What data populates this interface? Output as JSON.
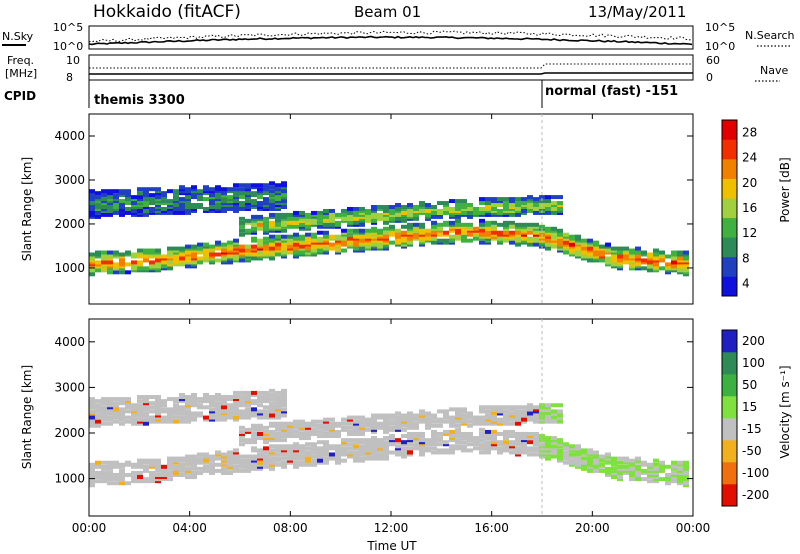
{
  "header": {
    "title": "Hokkaido (fitACF)",
    "beam": "Beam 01",
    "date": "13/May/2011"
  },
  "params": {
    "nsky_label": "N.Sky",
    "nsearch_label": "N.Search",
    "freq_label_line1": "Freq.",
    "freq_label_line2": "[MHz]",
    "nave_label": "Nave",
    "cpid_label": "CPID",
    "nsky_ticks": [
      "10^5",
      "10^0"
    ],
    "nsearch_ticks": [
      "10^5",
      "10^0"
    ],
    "freq_ticks": [
      "10",
      "8"
    ],
    "nave_ticks": [
      "60",
      "0"
    ],
    "cpid_segments": [
      {
        "name": "themis 3300",
        "start_hour": 0
      },
      {
        "name": "normal (fast) -151",
        "start_hour": 18
      }
    ]
  },
  "colors": {
    "power": [
      "#1010dd",
      "#2040c0",
      "#2e8b57",
      "#40b040",
      "#a0d040",
      "#f0c000",
      "#f08000",
      "#f03000",
      "#e00000"
    ],
    "velocity": [
      "#2020c0",
      "#2e8b57",
      "#3cb040",
      "#80e040",
      "#c0c0c0",
      "#f0b020",
      "#f07010",
      "#e01000"
    ]
  },
  "chart_data": [
    {
      "type": "heatmap",
      "panel": "power",
      "xlabel": "",
      "ylabel": "Slant Range [km]",
      "xlim": [
        0,
        24
      ],
      "ylim": [
        180,
        4500
      ],
      "yticks": [
        "1000",
        "2000",
        "3000",
        "4000"
      ],
      "colorbar_label": "Power [dB]",
      "colorbar_ticks": [
        "28",
        "24",
        "20",
        "16",
        "12",
        "8",
        "4"
      ],
      "colorbar_range": [
        0,
        32
      ],
      "echo_bands": [
        {
          "from_hour": 0,
          "to_hour": 24,
          "center_km": [
            1050,
            1150,
            1350,
            1500,
            1650,
            1800,
            1700,
            1200,
            1050
          ],
          "width_km": 500,
          "peak_db": 26
        },
        {
          "from_hour": 6,
          "to_hour": 19,
          "center_km": [
            1900,
            2100,
            2300,
            2400
          ],
          "width_km": 400,
          "peak_db": 18
        },
        {
          "from_hour": 0,
          "to_hour": 8,
          "center_km": [
            2400,
            2500,
            2600
          ],
          "width_km": 600,
          "peak_db": 10
        }
      ]
    },
    {
      "type": "heatmap",
      "panel": "velocity",
      "xlabel": "Time UT",
      "ylabel": "Slant Range [km]",
      "xlim": [
        0,
        24
      ],
      "ylim": [
        180,
        4500
      ],
      "xticks": [
        "00:00",
        "04:00",
        "08:00",
        "12:00",
        "16:00",
        "20:00",
        "00:00"
      ],
      "yticks": [
        "1000",
        "2000",
        "3000",
        "4000"
      ],
      "colorbar_label": "Velocity [m s⁻¹]",
      "colorbar_ticks": [
        "200",
        "100",
        "50",
        "15",
        "-15",
        "-50",
        "-100",
        "-200"
      ],
      "colorbar_range": [
        -250,
        250
      ]
    }
  ]
}
